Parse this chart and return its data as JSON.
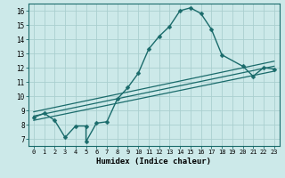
{
  "xlabel": "Humidex (Indice chaleur)",
  "bg_color": "#cce9e9",
  "grid_color": "#aacfcf",
  "line_color": "#1a6b6b",
  "xlim": [
    -0.5,
    23.5
  ],
  "ylim": [
    6.5,
    16.5
  ],
  "xticks": [
    0,
    1,
    2,
    3,
    4,
    5,
    6,
    7,
    8,
    9,
    10,
    11,
    12,
    13,
    14,
    15,
    16,
    17,
    18,
    19,
    20,
    21,
    22,
    23
  ],
  "yticks": [
    7,
    8,
    9,
    10,
    11,
    12,
    13,
    14,
    15,
    16
  ],
  "series": [
    {
      "x": [
        0,
        1,
        2,
        3,
        4,
        5,
        5,
        6,
        7,
        8,
        9,
        10,
        11,
        12,
        13,
        14,
        15,
        16,
        17,
        18,
        20,
        21,
        22,
        23
      ],
      "y": [
        8.5,
        8.8,
        8.3,
        7.1,
        7.9,
        7.9,
        6.8,
        8.1,
        8.2,
        9.8,
        10.6,
        11.6,
        13.3,
        14.2,
        14.9,
        16.0,
        16.2,
        15.8,
        14.7,
        12.9,
        12.1,
        11.4,
        12.0,
        11.9
      ],
      "marker": "D",
      "markersize": 2.5,
      "linewidth": 1.0,
      "has_markers": true
    },
    {
      "x": [
        0,
        23
      ],
      "y": [
        8.6,
        12.1
      ],
      "has_markers": false,
      "linewidth": 0.9
    },
    {
      "x": [
        0,
        23
      ],
      "y": [
        8.3,
        11.75
      ],
      "has_markers": false,
      "linewidth": 0.9
    },
    {
      "x": [
        0,
        23
      ],
      "y": [
        8.9,
        12.45
      ],
      "has_markers": false,
      "linewidth": 0.9
    }
  ]
}
